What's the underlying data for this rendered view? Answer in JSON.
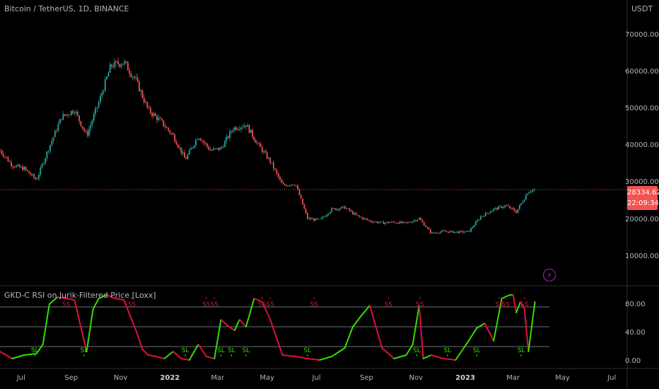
{
  "header": {
    "symbol": "Bitcoin / TetherUS, 1D, BINANCE",
    "currency": "USDT",
    "indicator_title": "GKD-C RSI on Jurik-Filtered Price [Loxx]"
  },
  "price_badge": {
    "price": "28334.62",
    "countdown": "22:09:34",
    "color": "#f05350"
  },
  "colors": {
    "background": "#000000",
    "candle_up": "#26a69a",
    "candle_down": "#ef5350",
    "rsi_up": "#33e000",
    "rsi_down": "#e0103c",
    "price_line": "#f05350",
    "bolt": "#9c27b0"
  },
  "icons": {
    "alert": "lightning-bolt-icon"
  },
  "chart_data": [
    {
      "type": "candlestick",
      "title": "Bitcoin / TetherUS, 1D, BINANCE",
      "ylabel": "USDT",
      "ylim": [
        3000,
        76000
      ],
      "yticks": [
        "70000.00",
        "60000.00",
        "50000.00",
        "40000.00",
        "30000.00",
        "20000.00",
        "10000.00"
      ],
      "ytick_values": [
        70000,
        60000,
        50000,
        40000,
        30000,
        20000,
        10000
      ],
      "last_price": 28334.62,
      "x": [
        "2021-06-05",
        "2021-06-20",
        "2021-07-05",
        "2021-07-20",
        "2021-08-05",
        "2021-08-20",
        "2021-09-05",
        "2021-09-20",
        "2021-10-05",
        "2021-10-20",
        "2021-11-05",
        "2021-11-20",
        "2021-12-05",
        "2021-12-20",
        "2022-01-05",
        "2022-01-20",
        "2022-02-05",
        "2022-02-20",
        "2022-03-05",
        "2022-03-20",
        "2022-04-05",
        "2022-04-20",
        "2022-05-05",
        "2022-05-20",
        "2022-06-05",
        "2022-06-20",
        "2022-07-05",
        "2022-07-20",
        "2022-08-05",
        "2022-08-20",
        "2022-09-05",
        "2022-09-20",
        "2022-10-05",
        "2022-10-20",
        "2022-11-05",
        "2022-11-20",
        "2022-12-05",
        "2022-12-20",
        "2023-01-05",
        "2023-01-20",
        "2023-02-05",
        "2023-02-20",
        "2023-03-05",
        "2023-03-20",
        "2023-03-28"
      ],
      "close": [
        39000,
        35000,
        34000,
        31000,
        40000,
        48000,
        50000,
        43000,
        52000,
        62000,
        63000,
        58000,
        50000,
        47000,
        43000,
        36500,
        43000,
        39000,
        39500,
        45000,
        46000,
        40500,
        36000,
        29500,
        30000,
        20500,
        20000,
        23000,
        23500,
        21200,
        19800,
        19300,
        19500,
        19200,
        20500,
        16500,
        17000,
        16800,
        16900,
        21000,
        23000,
        24000,
        22300,
        28000,
        28334
      ]
    },
    {
      "type": "line",
      "title": "GKD-C RSI on Jurik-Filtered Price [Loxx]",
      "ylim": [
        -8,
        106
      ],
      "yticks": [
        "80.00",
        "40.00",
        "0.00"
      ],
      "ytick_values": [
        80,
        40,
        0
      ],
      "levels": [
        78,
        50,
        22
      ],
      "xticks": [
        "Jul",
        "Sep",
        "Nov",
        "2022",
        "Mar",
        "May",
        "Jul",
        "Sep",
        "Nov",
        "2023",
        "Mar",
        "May",
        "Jul"
      ],
      "xticks_bold": [
        "2022",
        "2023"
      ],
      "xtick_dates": [
        "2021-07-01",
        "2021-09-01",
        "2021-11-01",
        "2022-01-01",
        "2022-03-01",
        "2022-05-01",
        "2022-07-01",
        "2022-09-01",
        "2022-11-01",
        "2023-01-01",
        "2023-03-01",
        "2023-05-01",
        "2023-07-01"
      ],
      "series": [
        {
          "x": [
            "2021-06-05",
            "2021-06-20",
            "2021-07-05",
            "2021-07-20",
            "2021-07-28",
            "2021-08-05",
            "2021-08-15",
            "2021-08-25",
            "2021-09-05",
            "2021-09-20",
            "2021-09-28",
            "2021-10-05",
            "2021-10-15",
            "2021-10-25",
            "2021-11-05",
            "2021-11-20",
            "2021-11-28",
            "2021-12-05",
            "2021-12-15",
            "2021-12-25",
            "2022-01-05",
            "2022-01-15",
            "2022-01-25",
            "2022-02-05",
            "2022-02-15",
            "2022-02-25",
            "2022-03-05",
            "2022-03-15",
            "2022-03-22",
            "2022-03-28",
            "2022-04-05",
            "2022-04-15",
            "2022-04-25",
            "2022-05-05",
            "2022-05-20",
            "2022-06-05",
            "2022-06-20",
            "2022-07-05",
            "2022-07-20",
            "2022-08-05",
            "2022-08-15",
            "2022-08-25",
            "2022-09-05",
            "2022-09-20",
            "2022-10-05",
            "2022-10-20",
            "2022-10-28",
            "2022-11-05",
            "2022-11-10",
            "2022-11-20",
            "2022-12-05",
            "2022-12-20",
            "2023-01-05",
            "2023-01-15",
            "2023-01-25",
            "2023-02-05",
            "2023-02-15",
            "2023-02-25",
            "2023-03-01",
            "2023-03-05",
            "2023-03-10",
            "2023-03-15",
            "2023-03-20",
            "2023-03-28"
          ],
          "y": [
            15,
            5,
            10,
            12,
            25,
            82,
            92,
            90,
            88,
            15,
            75,
            90,
            95,
            90,
            88,
            45,
            18,
            10,
            8,
            5,
            15,
            5,
            3,
            25,
            8,
            5,
            60,
            50,
            45,
            60,
            50,
            90,
            85,
            60,
            10,
            8,
            5,
            3,
            8,
            20,
            50,
            65,
            80,
            20,
            5,
            10,
            25,
            80,
            5,
            10,
            5,
            3,
            30,
            48,
            55,
            30,
            90,
            95,
            95,
            70,
            85,
            75,
            15,
            85
          ]
        }
      ],
      "signals": [
        {
          "label": "SL",
          "x": "2021-07-18"
        },
        {
          "label": "SS",
          "x": "2021-08-26"
        },
        {
          "label": "SL",
          "x": "2021-09-17"
        },
        {
          "label": "SS",
          "x": "2021-11-15"
        },
        {
          "label": "SL",
          "x": "2022-01-20"
        },
        {
          "label": "SS",
          "x": "2022-02-15"
        },
        {
          "label": "SS",
          "x": "2022-02-25"
        },
        {
          "label": "SL",
          "x": "2022-03-05"
        },
        {
          "label": "SL",
          "x": "2022-03-18"
        },
        {
          "label": "SL",
          "x": "2022-04-05"
        },
        {
          "label": "SS",
          "x": "2022-04-25"
        },
        {
          "label": "SS",
          "x": "2022-05-05"
        },
        {
          "label": "SL",
          "x": "2022-06-20"
        },
        {
          "label": "SS",
          "x": "2022-06-28"
        },
        {
          "label": "SS",
          "x": "2022-09-28"
        },
        {
          "label": "SL",
          "x": "2022-11-02"
        },
        {
          "label": "SS",
          "x": "2022-11-06"
        },
        {
          "label": "SL",
          "x": "2022-12-10"
        },
        {
          "label": "SL",
          "x": "2023-01-15"
        },
        {
          "label": "SS",
          "x": "2023-02-12"
        },
        {
          "label": "SS",
          "x": "2023-02-20"
        },
        {
          "label": "SL",
          "x": "2023-03-11"
        },
        {
          "label": "SS",
          "x": "2023-03-15"
        }
      ]
    }
  ]
}
